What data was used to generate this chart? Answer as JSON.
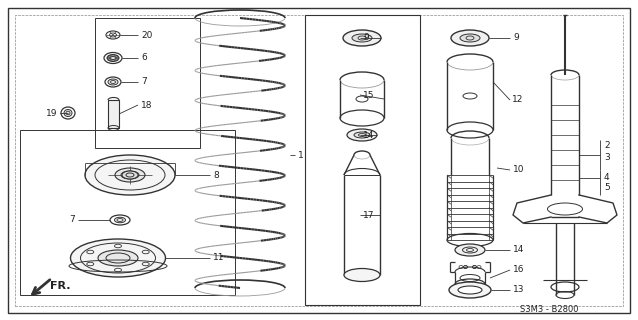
{
  "bg_color": "#ffffff",
  "line_color": "#333333",
  "text_color": "#222222",
  "diagram_code": "S3M3 - B2800",
  "figsize": [
    6.38,
    3.2
  ],
  "dpi": 100
}
